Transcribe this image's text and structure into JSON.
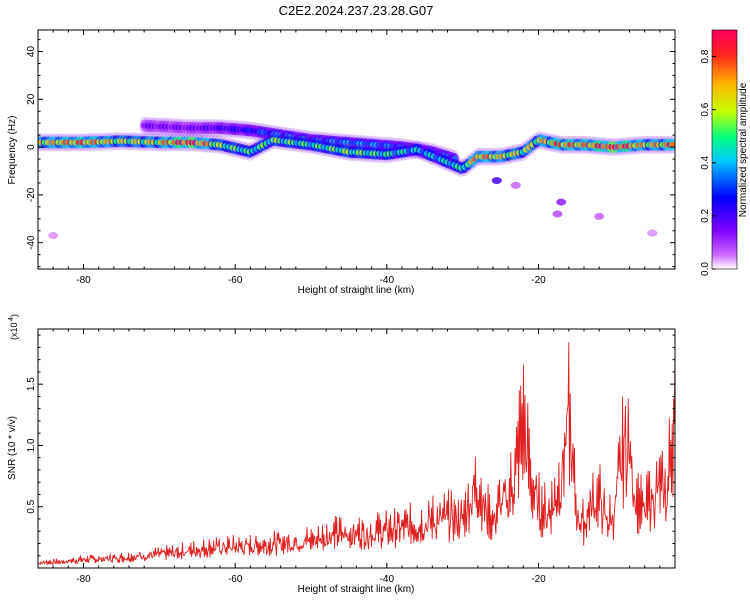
{
  "figure": {
    "title": "C2E2.2024.237.23.28.G07"
  },
  "chart_data": [
    {
      "type": "heatmap",
      "xlabel": "Height of straight line (km)",
      "ylabel": "Frequency (Hz)",
      "xlim": [
        -86,
        -2
      ],
      "ylim": [
        -51,
        49
      ],
      "xticks": [
        -80,
        -60,
        -40,
        -20
      ],
      "yticks": [
        -40,
        -20,
        0,
        20,
        40
      ],
      "grid": false,
      "colorbar": {
        "label": "Normalized spectral amplitude",
        "range": [
          0.0,
          0.9
        ],
        "ticks": [
          0.0,
          0.2,
          0.4,
          0.6,
          0.8
        ],
        "palette": [
          "#ffffff",
          "#cc66ff",
          "#7f00ff",
          "#0000ff",
          "#00c8ff",
          "#00ff80",
          "#c8ff00",
          "#ffb000",
          "#ff2020",
          "#ff0060"
        ]
      },
      "ridge": {
        "x": [
          -86,
          -80,
          -75,
          -70,
          -66,
          -62,
          -58,
          -55,
          -50,
          -45,
          -40,
          -36,
          -33,
          -30,
          -28,
          -25,
          -22,
          -20,
          -17,
          -14,
          -10,
          -6,
          -2
        ],
        "y": [
          2,
          2,
          2.5,
          2,
          2,
          1,
          -2,
          3,
          1,
          -2,
          -3,
          -1,
          -5,
          -9,
          -4,
          -4,
          -2,
          3,
          1,
          1,
          0,
          1,
          1
        ],
        "amplitude": [
          0.6,
          0.7,
          0.55,
          0.6,
          0.85,
          0.5,
          0.45,
          0.5,
          0.45,
          0.5,
          0.45,
          0.4,
          0.4,
          0.45,
          0.7,
          0.6,
          0.55,
          0.6,
          0.7,
          0.65,
          0.85,
          0.6,
          0.7
        ]
      },
      "secondary_ridge": {
        "x": [
          -72,
          -66,
          -62,
          -58,
          -54,
          -50,
          -46,
          -42,
          -38,
          -34,
          -31
        ],
        "y": [
          9,
          8,
          8,
          7,
          5,
          3,
          2,
          1,
          0,
          -2,
          -5
        ],
        "amplitude": [
          0.15,
          0.15,
          0.2,
          0.25,
          0.35,
          0.3,
          0.35,
          0.35,
          0.3,
          0.3,
          0.35
        ]
      },
      "isolated_blobs": [
        {
          "x": -25.5,
          "y": -14,
          "amplitude": 0.2
        },
        {
          "x": -17,
          "y": -23,
          "amplitude": 0.12
        },
        {
          "x": -17.5,
          "y": -28,
          "amplitude": 0.08
        },
        {
          "x": -12,
          "y": -29,
          "amplitude": 0.06
        },
        {
          "x": -23,
          "y": -16,
          "amplitude": 0.06
        },
        {
          "x": -84,
          "y": -37,
          "amplitude": 0.04
        },
        {
          "x": -5,
          "y": -36,
          "amplitude": 0.04
        }
      ]
    },
    {
      "type": "line",
      "xlabel": "Height of straight line (km)",
      "ylabel": "SNR (10 * v/v)",
      "multiplier": "(x10^4)",
      "multiplier_base": "(x10",
      "multiplier_exp": "4",
      "xlim": [
        -86,
        -2
      ],
      "ylim": [
        0.0,
        1.95
      ],
      "xticks": [
        -80,
        -60,
        -40,
        -20
      ],
      "yticks": [
        0.5,
        1.0,
        1.5
      ],
      "ytick_labels": [
        "0.5",
        "1.0",
        "1.5"
      ],
      "grid": false,
      "line_color": "#e02020",
      "series": [
        {
          "x": [
            -86,
            -83,
            -80,
            -77,
            -74,
            -71,
            -68,
            -65,
            -62,
            -59,
            -56,
            -53,
            -50,
            -48,
            -46,
            -44,
            -42,
            -40,
            -38,
            -36,
            -34,
            -32,
            -30,
            -29,
            -28,
            -27,
            -26,
            -25,
            -24,
            -23,
            -22.5,
            -22,
            -21,
            -20,
            -19,
            -18,
            -17,
            -16.5,
            -16,
            -15.5,
            -15,
            -14,
            -13,
            -12,
            -11,
            -10,
            -9.5,
            -9,
            -8.5,
            -8,
            -7,
            -6,
            -5,
            -4,
            -3,
            -2.5,
            -2
          ],
          "y": [
            0.07,
            0.08,
            0.11,
            0.12,
            0.14,
            0.17,
            0.2,
            0.24,
            0.27,
            0.28,
            0.3,
            0.33,
            0.36,
            0.42,
            0.44,
            0.45,
            0.46,
            0.48,
            0.52,
            0.55,
            0.62,
            0.65,
            0.62,
            0.92,
            1.1,
            0.75,
            0.6,
            0.85,
            0.9,
            1.25,
            1.6,
            1.84,
            1.1,
            0.8,
            0.7,
            0.85,
            1.2,
            1.6,
            1.93,
            1.3,
            0.75,
            0.55,
            0.85,
            0.9,
            0.6,
            0.7,
            1.1,
            1.35,
            1.65,
            1.55,
            0.85,
            0.7,
            0.95,
            1.05,
            0.9,
            1.7,
            1.85
          ]
        }
      ]
    }
  ]
}
